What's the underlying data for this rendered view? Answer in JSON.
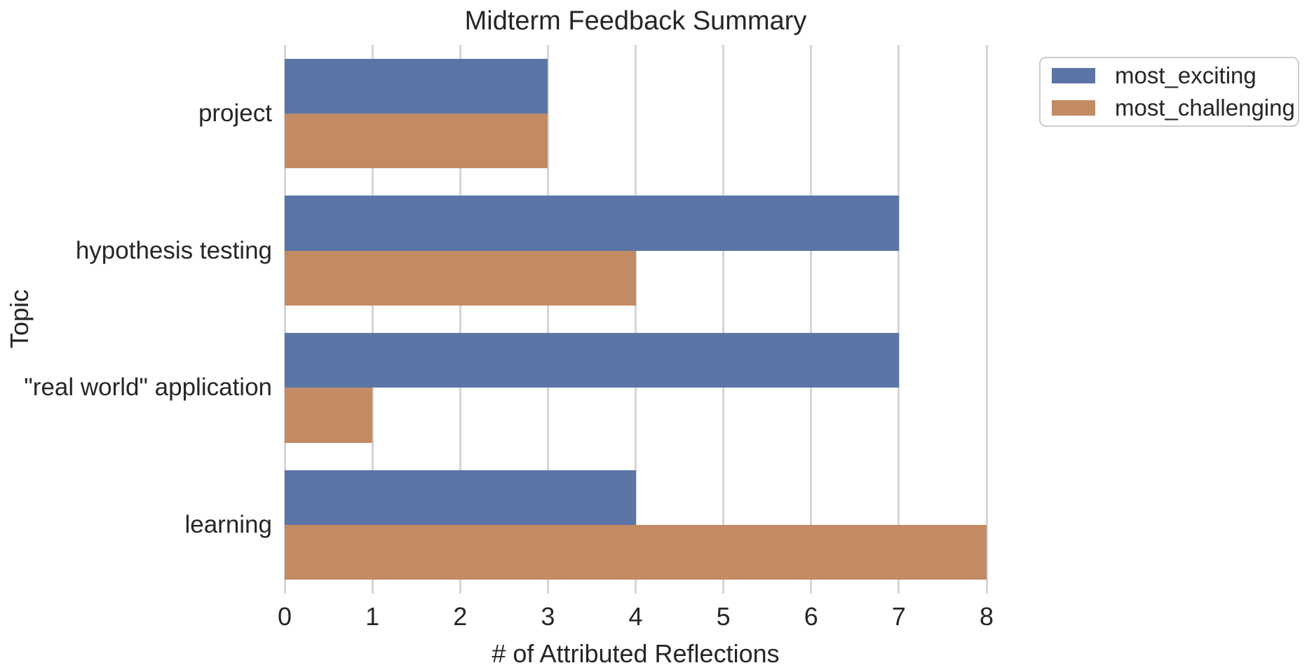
{
  "chart_data": {
    "type": "bar",
    "orientation": "horizontal",
    "title": "Midterm Feedback Summary",
    "xlabel": "# of Attributed Reflections",
    "ylabel": "Topic",
    "categories": [
      "project",
      "hypothesis testing",
      "\"real world\" application",
      "learning"
    ],
    "series": [
      {
        "name": "most_exciting",
        "color": "#5A75A6",
        "values": [
          3,
          7,
          7,
          4
        ]
      },
      {
        "name": "most_challenging",
        "color": "#C28B64",
        "values": [
          3,
          4,
          1,
          8
        ]
      }
    ],
    "xlim": [
      0,
      8
    ],
    "xticks": [
      "0",
      "1",
      "2",
      "3",
      "4",
      "5",
      "6",
      "7",
      "8"
    ],
    "grid": true,
    "legend": {
      "position": "upper-right-outside",
      "entries": [
        "most_exciting",
        "most_challenging"
      ]
    }
  },
  "style": {
    "background": "#ffffff",
    "grid_color": "#d5d5d5",
    "text_color": "#262626",
    "legend_border_color": "#cccccc"
  }
}
